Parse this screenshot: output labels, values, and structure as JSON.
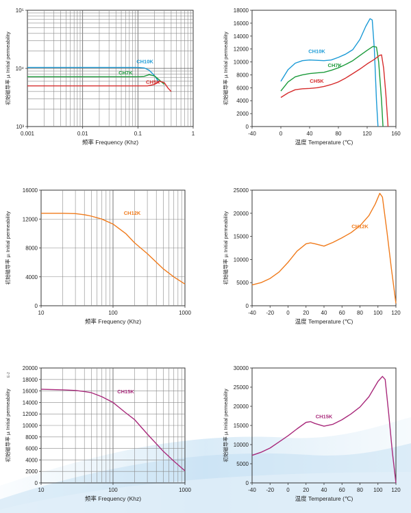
{
  "page": {
    "ylabel_vertical": "初始磁导率 μᵢ Initial permeability",
    "tiny_mark": "E-2"
  },
  "chart_data": [
    {
      "type": "line",
      "xscale": "log",
      "yscale": "log",
      "xlabel": "频率 Frequency (Khz)",
      "ylabel": "初始磁导率 μᵢ Initial permeability",
      "xlim": [
        0.001,
        1
      ],
      "ylim": [
        1000,
        100000
      ],
      "xticks": [
        "0.001",
        "0.01",
        "0.1",
        "1"
      ],
      "yticks": [
        "10³",
        "10⁴",
        "10⁵"
      ],
      "grid": true,
      "series": [
        {
          "name": "CH10K",
          "color": "#1a9ad6",
          "points": [
            [
              0.001,
              10400
            ],
            [
              0.005,
              10400
            ],
            [
              0.02,
              10400
            ],
            [
              0.05,
              10400
            ],
            [
              0.1,
              10400
            ],
            [
              0.13,
              10200
            ],
            [
              0.16,
              9300
            ],
            [
              0.2,
              7500
            ],
            [
              0.24,
              5800
            ]
          ]
        },
        {
          "name": "CH7K",
          "color": "#1a9a3a",
          "points": [
            [
              0.001,
              7200
            ],
            [
              0.01,
              7200
            ],
            [
              0.05,
              7200
            ],
            [
              0.1,
              7200
            ],
            [
              0.13,
              7300
            ],
            [
              0.16,
              7800
            ],
            [
              0.2,
              7400
            ],
            [
              0.25,
              6200
            ],
            [
              0.3,
              5300
            ]
          ]
        },
        {
          "name": "CH5K",
          "color": "#d62b2b",
          "points": [
            [
              0.001,
              5000
            ],
            [
              0.01,
              5000
            ],
            [
              0.1,
              5000
            ],
            [
              0.15,
              5000
            ],
            [
              0.2,
              5300
            ],
            [
              0.25,
              6000
            ],
            [
              0.3,
              5700
            ],
            [
              0.35,
              4600
            ],
            [
              0.4,
              4000
            ]
          ]
        }
      ]
    },
    {
      "type": "line",
      "xlabel": "温度 Temperature (℃)",
      "ylabel": "初始磁导率 μᵢ Initial permeability",
      "xlim": [
        -40,
        160
      ],
      "ylim": [
        0,
        18000
      ],
      "xticks": [
        -40,
        0,
        40,
        80,
        120,
        160
      ],
      "yticks": [
        0,
        2000,
        4000,
        6000,
        8000,
        10000,
        12000,
        14000,
        16000,
        18000
      ],
      "grid": false,
      "series": [
        {
          "name": "CH10K",
          "color": "#1a9ad6",
          "points": [
            [
              0,
              7000
            ],
            [
              10,
              8800
            ],
            [
              20,
              9800
            ],
            [
              30,
              10200
            ],
            [
              40,
              10300
            ],
            [
              50,
              10250
            ],
            [
              60,
              10200
            ],
            [
              70,
              10300
            ],
            [
              80,
              10700
            ],
            [
              90,
              11200
            ],
            [
              100,
              11900
            ],
            [
              110,
              13500
            ],
            [
              118,
              15500
            ],
            [
              124,
              16700
            ],
            [
              127,
              16500
            ],
            [
              130,
              12000
            ],
            [
              133,
              4000
            ],
            [
              135,
              0
            ]
          ]
        },
        {
          "name": "CH7K",
          "color": "#1a9a3a",
          "points": [
            [
              0,
              5500
            ],
            [
              10,
              6900
            ],
            [
              20,
              7700
            ],
            [
              30,
              8000
            ],
            [
              40,
              8200
            ],
            [
              50,
              8300
            ],
            [
              60,
              8400
            ],
            [
              70,
              8700
            ],
            [
              80,
              9100
            ],
            [
              90,
              9600
            ],
            [
              100,
              10200
            ],
            [
              110,
              11000
            ],
            [
              120,
              11800
            ],
            [
              128,
              12400
            ],
            [
              133,
              12300
            ],
            [
              136,
              10000
            ],
            [
              140,
              4000
            ],
            [
              142,
              0
            ]
          ]
        },
        {
          "name": "CH5K",
          "color": "#d62b2b",
          "points": [
            [
              0,
              4500
            ],
            [
              10,
              5200
            ],
            [
              20,
              5700
            ],
            [
              30,
              5850
            ],
            [
              40,
              5900
            ],
            [
              50,
              6000
            ],
            [
              60,
              6200
            ],
            [
              70,
              6500
            ],
            [
              80,
              6900
            ],
            [
              90,
              7500
            ],
            [
              100,
              8200
            ],
            [
              110,
              8900
            ],
            [
              120,
              9700
            ],
            [
              130,
              10400
            ],
            [
              137,
              11000
            ],
            [
              140,
              11100
            ],
            [
              143,
              9000
            ],
            [
              146,
              5000
            ],
            [
              149,
              0
            ]
          ]
        }
      ]
    },
    {
      "type": "line",
      "xscale": "log",
      "xlabel": "频率 Frequency (Khz)",
      "ylabel": "初始磁导率 μᵢ Initial permeability",
      "xlim": [
        10,
        1000
      ],
      "ylim": [
        0,
        16000
      ],
      "xticks": [
        "10",
        "100",
        "1000"
      ],
      "yticks": [
        0,
        4000,
        8000,
        12000,
        16000
      ],
      "grid": true,
      "series": [
        {
          "name": "CH12K",
          "color": "#f07a1a",
          "points": [
            [
              10,
              12800
            ],
            [
              20,
              12800
            ],
            [
              30,
              12750
            ],
            [
              40,
              12600
            ],
            [
              50,
              12400
            ],
            [
              70,
              12000
            ],
            [
              100,
              11300
            ],
            [
              150,
              10000
            ],
            [
              200,
              8700
            ],
            [
              300,
              7200
            ],
            [
              500,
              5100
            ],
            [
              700,
              4000
            ],
            [
              1000,
              3000
            ]
          ]
        }
      ]
    },
    {
      "type": "line",
      "xlabel": "温度 Temperature (℃)",
      "ylabel": "初始磁导率 μᵢ Initial permeability",
      "xlim": [
        -40,
        120
      ],
      "ylim": [
        0,
        25000
      ],
      "xticks": [
        -40,
        -20,
        0,
        20,
        40,
        60,
        80,
        100,
        120
      ],
      "yticks": [
        0,
        5000,
        10000,
        15000,
        20000,
        25000
      ],
      "grid": false,
      "series": [
        {
          "name": "CH12K",
          "color": "#f07a1a",
          "points": [
            [
              -40,
              4500
            ],
            [
              -30,
              5000
            ],
            [
              -20,
              5900
            ],
            [
              -10,
              7300
            ],
            [
              0,
              9400
            ],
            [
              10,
              11800
            ],
            [
              20,
              13400
            ],
            [
              25,
              13600
            ],
            [
              30,
              13400
            ],
            [
              40,
              12900
            ],
            [
              50,
              13700
            ],
            [
              60,
              14700
            ],
            [
              70,
              15800
            ],
            [
              80,
              17300
            ],
            [
              90,
              19500
            ],
            [
              97,
              22000
            ],
            [
              102,
              24300
            ],
            [
              105,
              23500
            ],
            [
              110,
              16000
            ],
            [
              115,
              8000
            ],
            [
              120,
              500
            ]
          ]
        }
      ]
    },
    {
      "type": "line",
      "xscale": "log",
      "xlabel": "频率 Frequency (Khz)",
      "ylabel": "初始磁导率 μᵢ Initial permeability",
      "xlim": [
        10,
        1000
      ],
      "ylim": [
        0,
        20000
      ],
      "xticks": [
        "10",
        "100",
        "1000"
      ],
      "yticks": [
        0,
        2000,
        4000,
        6000,
        8000,
        10000,
        12000,
        14000,
        16000,
        18000,
        20000
      ],
      "grid": true,
      "series": [
        {
          "name": "CH15K",
          "color": "#a8287a",
          "points": [
            [
              10,
              16300
            ],
            [
              20,
              16200
            ],
            [
              30,
              16100
            ],
            [
              40,
              15900
            ],
            [
              50,
              15700
            ],
            [
              70,
              15000
            ],
            [
              100,
              14000
            ],
            [
              150,
              12200
            ],
            [
              200,
              11000
            ],
            [
              300,
              8500
            ],
            [
              500,
              5500
            ],
            [
              700,
              3800
            ],
            [
              1000,
              2100
            ]
          ]
        }
      ]
    },
    {
      "type": "line",
      "xlabel": "温度 Temperature (℃)",
      "ylabel": "初始磁导率 μᵢ Initial permeability",
      "xlim": [
        -40,
        120
      ],
      "ylim": [
        0,
        30000
      ],
      "xticks": [
        -40,
        -20,
        0,
        20,
        40,
        60,
        80,
        100,
        120
      ],
      "yticks": [
        0,
        5000,
        10000,
        15000,
        20000,
        25000,
        30000
      ],
      "grid": false,
      "series": [
        {
          "name": "CH15K",
          "color": "#a8287a",
          "points": [
            [
              -40,
              7200
            ],
            [
              -30,
              8000
            ],
            [
              -20,
              9100
            ],
            [
              -10,
              10700
            ],
            [
              0,
              12300
            ],
            [
              10,
              14100
            ],
            [
              20,
              15800
            ],
            [
              25,
              16000
            ],
            [
              30,
              15500
            ],
            [
              40,
              14800
            ],
            [
              50,
              15300
            ],
            [
              60,
              16500
            ],
            [
              70,
              18000
            ],
            [
              80,
              19800
            ],
            [
              90,
              22500
            ],
            [
              100,
              26500
            ],
            [
              105,
              27800
            ],
            [
              108,
              27000
            ],
            [
              112,
              18000
            ],
            [
              116,
              8000
            ],
            [
              120,
              0
            ]
          ]
        }
      ]
    }
  ]
}
